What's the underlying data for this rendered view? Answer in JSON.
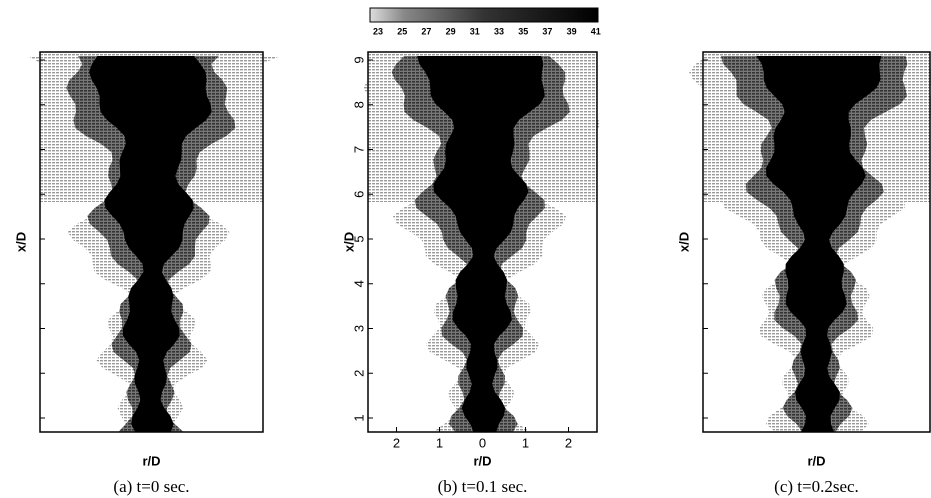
{
  "colorbar": {
    "ticks": [
      23,
      25,
      27,
      29,
      31,
      33,
      35,
      37,
      39,
      41
    ]
  },
  "panels": [
    {
      "caption": "(a) t=0 sec.",
      "xlabel": "r/D",
      "ylabel": "x/D"
    },
    {
      "caption": "(b) t=0.1 sec.",
      "xlabel": "r/D",
      "ylabel": "x/D",
      "xticks": [
        2,
        1,
        0,
        1,
        2
      ],
      "yticks": [
        1,
        2,
        3,
        4,
        5,
        6,
        7,
        8,
        9
      ]
    },
    {
      "caption": "(c) t=0.2sec.",
      "xlabel": "r/D",
      "ylabel": "x/D"
    }
  ]
}
